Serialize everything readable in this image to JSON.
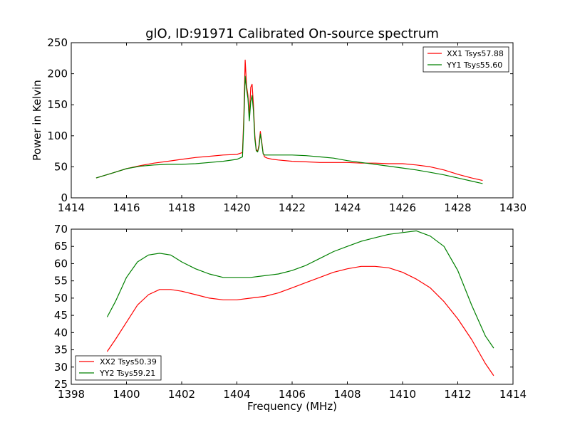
{
  "title": "glO, ID:91971 Calibrated On-source spectrum",
  "colors": {
    "red": "#ff0000",
    "green": "#008000"
  },
  "chart_data": [
    {
      "type": "line",
      "title": "glO, ID:91971 Calibrated On-source spectrum",
      "xlabel": "",
      "ylabel": "Power in Kelvin",
      "xlim": [
        1414,
        1430
      ],
      "ylim": [
        0,
        250
      ],
      "xticks": [
        1414,
        1416,
        1418,
        1420,
        1422,
        1424,
        1426,
        1428,
        1430
      ],
      "yticks": [
        0,
        50,
        100,
        150,
        200,
        250
      ],
      "legend_position": "top-right",
      "series": [
        {
          "name": "XX1 Tsys57.88",
          "color": "#ff0000",
          "x": [
            1414.9,
            1415.5,
            1416,
            1416.5,
            1417,
            1417.5,
            1418,
            1418.5,
            1419,
            1419.5,
            1420,
            1420.2,
            1420.25,
            1420.3,
            1420.35,
            1420.4,
            1420.45,
            1420.5,
            1420.55,
            1420.6,
            1420.65,
            1420.7,
            1420.75,
            1420.8,
            1420.85,
            1420.9,
            1420.95,
            1421,
            1421.1,
            1421.3,
            1421.5,
            1422,
            1422.5,
            1423,
            1423.5,
            1424,
            1424.5,
            1425,
            1425.5,
            1426,
            1426.5,
            1427,
            1427.5,
            1428,
            1428.5,
            1428.9
          ],
          "values": [
            32,
            40,
            47,
            52,
            56,
            59,
            62,
            65,
            67,
            69,
            70,
            73,
            130,
            222,
            180,
            165,
            130,
            178,
            183,
            150,
            100,
            78,
            75,
            85,
            107,
            90,
            72,
            66,
            64,
            62,
            61,
            59,
            58,
            57,
            57,
            57,
            56,
            56,
            55,
            55,
            53,
            50,
            45,
            38,
            32,
            28
          ]
        },
        {
          "name": "YY1 Tsys55.60",
          "color": "#008000",
          "x": [
            1414.9,
            1415.5,
            1416,
            1416.5,
            1417,
            1417.5,
            1418,
            1418.5,
            1419,
            1419.5,
            1420,
            1420.2,
            1420.25,
            1420.3,
            1420.35,
            1420.4,
            1420.45,
            1420.5,
            1420.55,
            1420.6,
            1420.65,
            1420.7,
            1420.75,
            1420.8,
            1420.85,
            1420.9,
            1420.95,
            1421,
            1421.1,
            1421.3,
            1421.5,
            1422,
            1422.5,
            1423,
            1423.5,
            1424,
            1424.5,
            1425,
            1425.5,
            1426,
            1426.5,
            1427,
            1427.5,
            1428,
            1428.5,
            1428.9
          ],
          "values": [
            32,
            40,
            47,
            51,
            53,
            54,
            54,
            55,
            57,
            59,
            62,
            66,
            120,
            196,
            175,
            160,
            124,
            155,
            165,
            140,
            95,
            76,
            74,
            82,
            103,
            88,
            71,
            69,
            69,
            69,
            69,
            69,
            68,
            66,
            64,
            60,
            57,
            54,
            51,
            48,
            45,
            41,
            37,
            32,
            27,
            23
          ]
        }
      ]
    },
    {
      "type": "line",
      "title": "",
      "xlabel": "Frequency (MHz)",
      "ylabel": "",
      "xlim": [
        1398,
        1414
      ],
      "ylim": [
        25,
        70
      ],
      "xticks": [
        1398,
        1400,
        1402,
        1404,
        1406,
        1408,
        1410,
        1412,
        1414
      ],
      "yticks": [
        25,
        30,
        35,
        40,
        45,
        50,
        55,
        60,
        65,
        70
      ],
      "legend_position": "bottom-left",
      "series": [
        {
          "name": "XX2 Tsys50.39",
          "color": "#ff0000",
          "x": [
            1399.3,
            1399.6,
            1400,
            1400.4,
            1400.8,
            1401.2,
            1401.6,
            1402,
            1402.5,
            1403,
            1403.5,
            1404,
            1404.5,
            1405,
            1405.5,
            1406,
            1406.5,
            1407,
            1407.5,
            1408,
            1408.5,
            1409,
            1409.5,
            1410,
            1410.5,
            1411,
            1411.5,
            1412,
            1412.5,
            1413,
            1413.3
          ],
          "values": [
            34.5,
            38,
            43,
            48,
            51,
            52.5,
            52.5,
            52,
            51,
            50,
            49.5,
            49.5,
            50,
            50.5,
            51.5,
            53,
            54.5,
            56,
            57.5,
            58.5,
            59.2,
            59.2,
            58.8,
            57.5,
            55.5,
            53,
            49,
            44,
            38,
            31,
            27.5
          ]
        },
        {
          "name": "YY2 Tsys59.21",
          "color": "#008000",
          "x": [
            1399.3,
            1399.6,
            1400,
            1400.4,
            1400.8,
            1401.2,
            1401.6,
            1402,
            1402.5,
            1403,
            1403.5,
            1404,
            1404.5,
            1405,
            1405.5,
            1406,
            1406.5,
            1407,
            1407.5,
            1408,
            1408.5,
            1409,
            1409.5,
            1410,
            1410.5,
            1411,
            1411.5,
            1412,
            1412.5,
            1413,
            1413.3
          ],
          "values": [
            44.5,
            49,
            56,
            60.5,
            62.5,
            63,
            62.5,
            60.5,
            58.5,
            57,
            56,
            56,
            56,
            56.5,
            57,
            58,
            59.5,
            61.5,
            63.5,
            65,
            66.5,
            67.5,
            68.5,
            69,
            69.5,
            68,
            65,
            58,
            48,
            39,
            35.5
          ]
        }
      ]
    }
  ]
}
